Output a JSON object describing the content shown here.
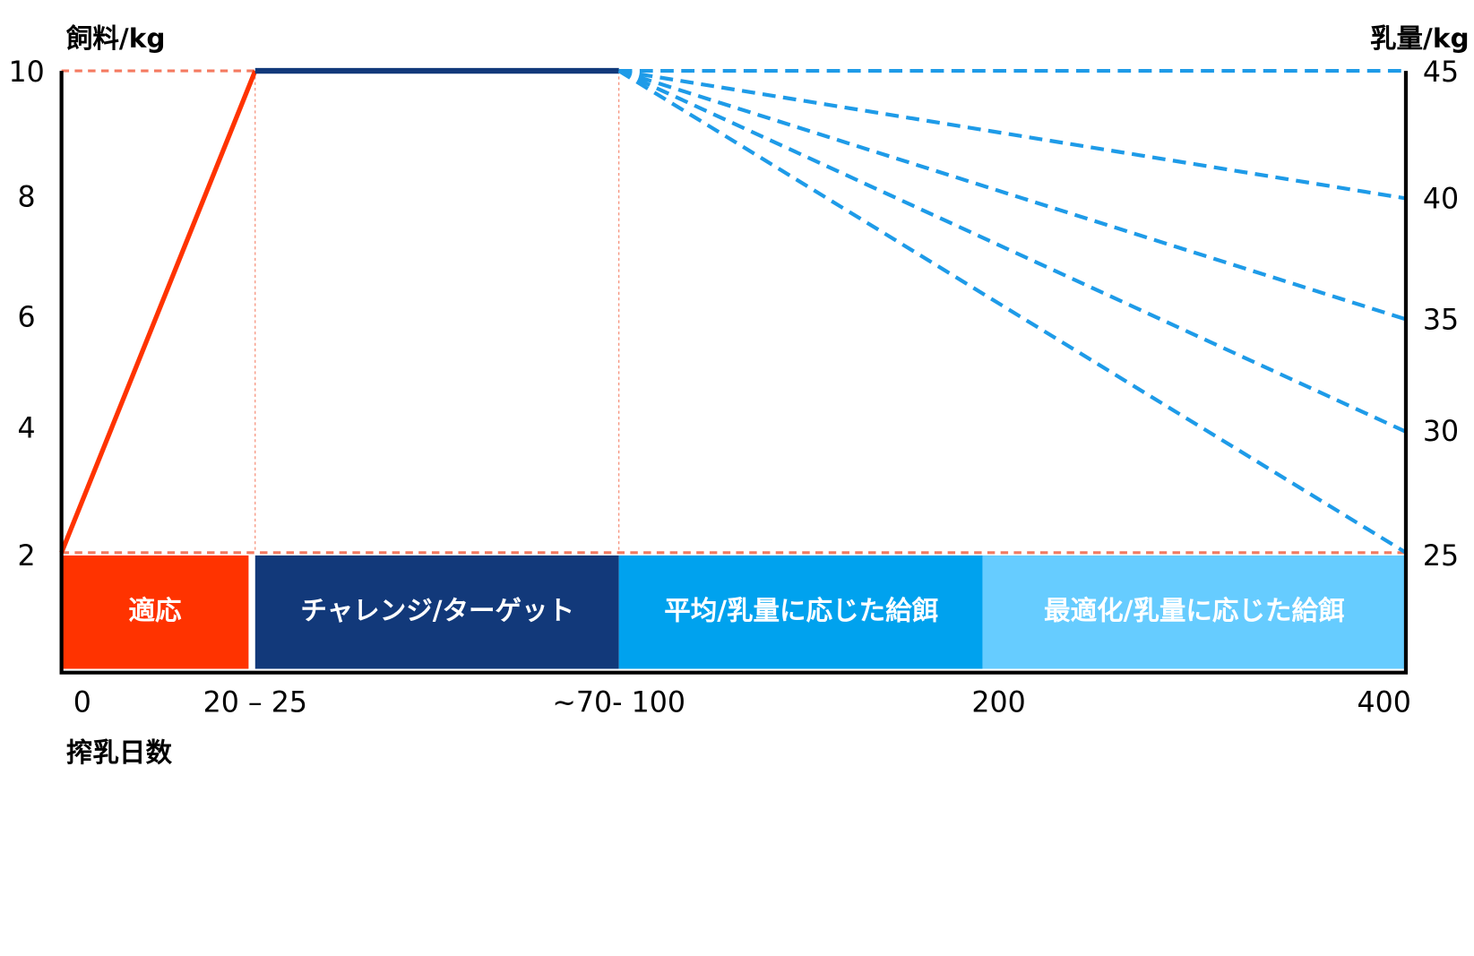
{
  "left_axis": {
    "title": "飼料/kg",
    "ticks": [
      "10",
      "8",
      "6",
      "4",
      "2"
    ]
  },
  "right_axis": {
    "title": "乳量/kg",
    "ticks": [
      "45",
      "40",
      "35",
      "30",
      "25"
    ]
  },
  "x_axis": {
    "title": "搾乳日数",
    "labels": [
      "0",
      "20 – 25",
      "~70- 100",
      "200",
      "400"
    ]
  },
  "phases": [
    "適応",
    "チャレンジ/ターゲット",
    "平均/乳量に応じた給餌",
    "最適化/乳量に応じた給餌"
  ]
}
